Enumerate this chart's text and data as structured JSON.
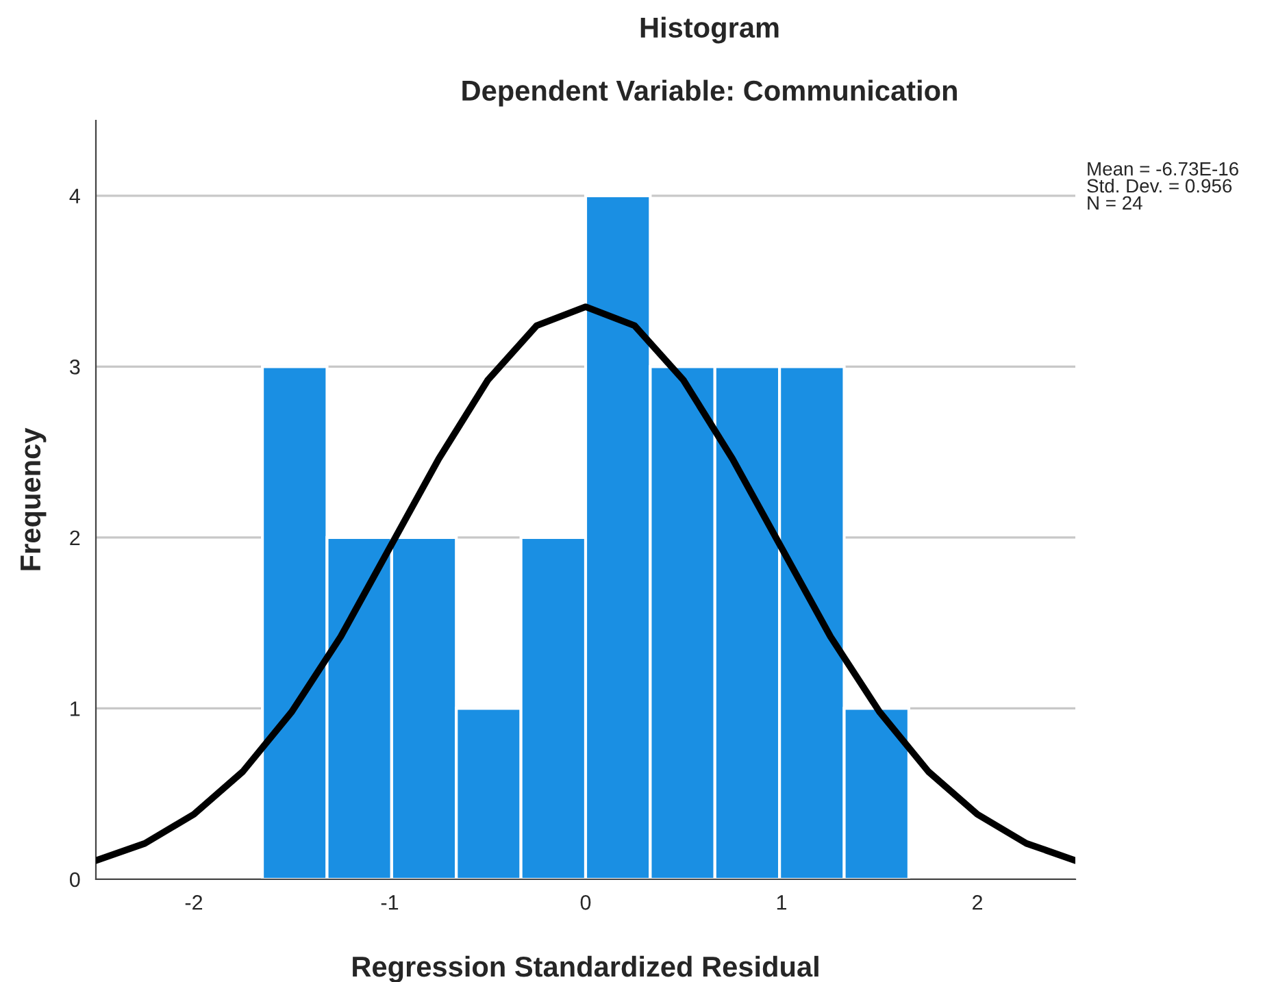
{
  "chart_data": {
    "type": "histogram",
    "title": "Histogram",
    "subtitle": "Dependent Variable: Communication",
    "xlabel": "Regression Standardized Residual",
    "ylabel": "Frequency",
    "bins": [
      -1.65,
      -1.32,
      -0.99,
      -0.66,
      -0.33,
      0,
      0.33,
      0.66,
      0.99,
      1.32,
      1.65
    ],
    "values": [
      3,
      2,
      2,
      1,
      2,
      4,
      3,
      3,
      3,
      1
    ],
    "color": "#1a8fe3",
    "series": [
      {
        "type": "line",
        "color": "#000000",
        "x": [
          -2.5,
          -2.25,
          -2,
          -1.75,
          -1.5,
          -1.25,
          -1,
          -0.75,
          -0.5,
          -0.25,
          0,
          0.25,
          0.5,
          0.75,
          1,
          1.25,
          1.5,
          1.75,
          2,
          2.25,
          2.5
        ],
        "values": [
          0.11,
          0.21,
          0.38,
          0.63,
          0.98,
          1.42,
          1.94,
          2.46,
          2.92,
          3.24,
          3.35,
          3.24,
          2.92,
          2.46,
          1.94,
          1.42,
          0.98,
          0.63,
          0.38,
          0.21,
          0.11
        ]
      }
    ],
    "xlim": [
      -2.5,
      2.5
    ],
    "xticks": [
      -2,
      -1,
      0,
      1,
      2
    ],
    "ylim": [
      0,
      4.44
    ],
    "yticks": [
      0,
      1,
      2,
      3,
      4
    ],
    "grid": "y",
    "annotations": [
      "Mean = -6.73E-16",
      "Std. Dev. = 0.956",
      "N = 24"
    ]
  }
}
